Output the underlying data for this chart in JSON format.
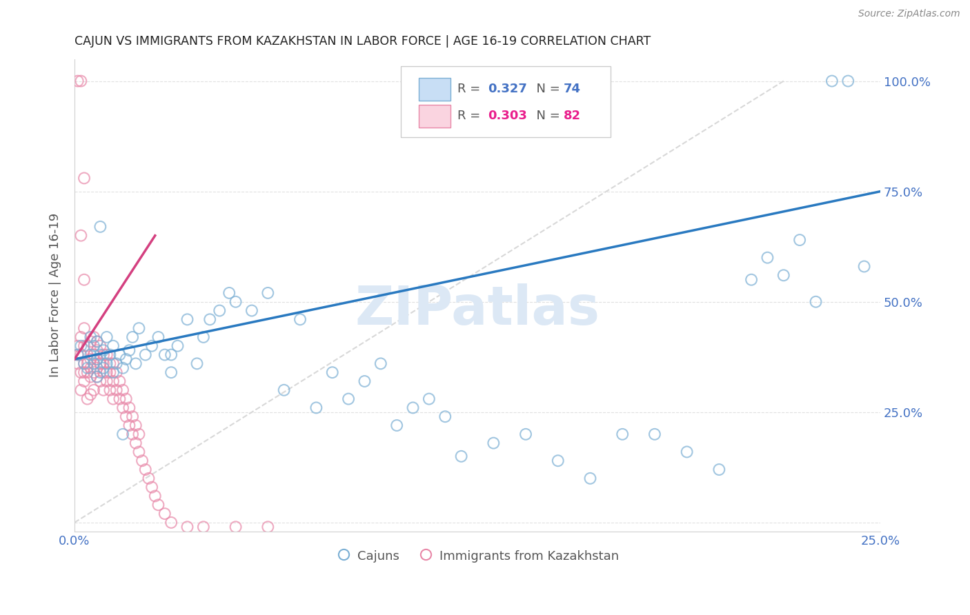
{
  "title": "CAJUN VS IMMIGRANTS FROM KAZAKHSTAN IN LABOR FORCE | AGE 16-19 CORRELATION CHART",
  "source": "Source: ZipAtlas.com",
  "ylabel": "In Labor Force | Age 16-19",
  "x_min": 0.0,
  "x_max": 0.25,
  "y_min": -0.02,
  "y_max": 1.05,
  "cajun_R": 0.327,
  "cajun_N": 74,
  "kazakh_R": 0.303,
  "kazakh_N": 82,
  "blue_color": "#a8c8e8",
  "blue_edge_color": "#7bafd4",
  "pink_color": "#f4b8ca",
  "pink_edge_color": "#e888a8",
  "blue_line_color": "#2979c0",
  "pink_line_color": "#d44080",
  "ref_line_color": "#d8d8d8",
  "tick_label_color": "#4472C4",
  "legend_blue_text_color": "#4472C4",
  "legend_pink_text_color": "#e91e8c",
  "watermark_color": "#dce8f5",
  "background_color": "#ffffff",
  "grid_color": "#e0e0e0",
  "blue_line_x": [
    0.0,
    0.25
  ],
  "blue_line_y": [
    0.37,
    0.75
  ],
  "pink_line_x": [
    0.0,
    0.025
  ],
  "pink_line_y": [
    0.37,
    0.65
  ],
  "ref_line_x": [
    0.0,
    0.22
  ],
  "ref_line_y": [
    0.0,
    1.0
  ],
  "cajun_x": [
    0.001,
    0.002,
    0.003,
    0.004,
    0.005,
    0.005,
    0.006,
    0.006,
    0.007,
    0.007,
    0.007,
    0.008,
    0.008,
    0.009,
    0.009,
    0.01,
    0.01,
    0.011,
    0.012,
    0.012,
    0.013,
    0.014,
    0.015,
    0.016,
    0.017,
    0.018,
    0.019,
    0.02,
    0.022,
    0.024,
    0.026,
    0.028,
    0.03,
    0.032,
    0.035,
    0.038,
    0.04,
    0.042,
    0.045,
    0.048,
    0.05,
    0.055,
    0.06,
    0.065,
    0.07,
    0.075,
    0.08,
    0.085,
    0.09,
    0.095,
    0.1,
    0.105,
    0.11,
    0.115,
    0.12,
    0.13,
    0.14,
    0.15,
    0.16,
    0.17,
    0.18,
    0.19,
    0.2,
    0.21,
    0.215,
    0.22,
    0.225,
    0.23,
    0.235,
    0.24,
    0.245,
    0.008,
    0.015,
    0.03
  ],
  "cajun_y": [
    0.38,
    0.4,
    0.36,
    0.35,
    0.38,
    0.42,
    0.36,
    0.4,
    0.33,
    0.37,
    0.41,
    0.34,
    0.38,
    0.35,
    0.39,
    0.36,
    0.42,
    0.38,
    0.34,
    0.4,
    0.36,
    0.38,
    0.35,
    0.37,
    0.39,
    0.42,
    0.36,
    0.44,
    0.38,
    0.4,
    0.42,
    0.38,
    0.34,
    0.4,
    0.46,
    0.36,
    0.42,
    0.46,
    0.48,
    0.52,
    0.5,
    0.48,
    0.52,
    0.3,
    0.46,
    0.26,
    0.34,
    0.28,
    0.32,
    0.36,
    0.22,
    0.26,
    0.28,
    0.24,
    0.15,
    0.18,
    0.2,
    0.14,
    0.1,
    0.2,
    0.2,
    0.16,
    0.12,
    0.55,
    0.6,
    0.56,
    0.64,
    0.5,
    1.0,
    1.0,
    0.58,
    0.67,
    0.2,
    0.38
  ],
  "kazakh_x": [
    0.001,
    0.001,
    0.001,
    0.001,
    0.002,
    0.002,
    0.002,
    0.002,
    0.002,
    0.003,
    0.003,
    0.003,
    0.003,
    0.003,
    0.003,
    0.004,
    0.004,
    0.004,
    0.004,
    0.005,
    0.005,
    0.005,
    0.005,
    0.005,
    0.006,
    0.006,
    0.006,
    0.006,
    0.006,
    0.006,
    0.007,
    0.007,
    0.007,
    0.007,
    0.007,
    0.008,
    0.008,
    0.008,
    0.008,
    0.009,
    0.009,
    0.009,
    0.009,
    0.01,
    0.01,
    0.01,
    0.011,
    0.011,
    0.011,
    0.012,
    0.012,
    0.012,
    0.013,
    0.013,
    0.014,
    0.014,
    0.015,
    0.015,
    0.016,
    0.016,
    0.017,
    0.017,
    0.018,
    0.018,
    0.019,
    0.019,
    0.02,
    0.02,
    0.021,
    0.022,
    0.023,
    0.024,
    0.025,
    0.026,
    0.028,
    0.03,
    0.035,
    0.04,
    0.05,
    0.06,
    0.002,
    0.003
  ],
  "kazakh_y": [
    0.38,
    0.4,
    0.36,
    1.0,
    0.34,
    0.38,
    0.42,
    1.0,
    0.3,
    0.36,
    0.4,
    0.44,
    0.34,
    0.78,
    0.32,
    0.36,
    0.4,
    0.28,
    0.34,
    0.37,
    0.41,
    0.33,
    0.29,
    0.35,
    0.38,
    0.34,
    0.42,
    0.3,
    0.38,
    0.36,
    0.35,
    0.39,
    0.33,
    0.41,
    0.37,
    0.36,
    0.4,
    0.32,
    0.36,
    0.34,
    0.38,
    0.3,
    0.36,
    0.34,
    0.38,
    0.32,
    0.36,
    0.3,
    0.34,
    0.28,
    0.32,
    0.36,
    0.3,
    0.34,
    0.28,
    0.32,
    0.26,
    0.3,
    0.24,
    0.28,
    0.22,
    0.26,
    0.2,
    0.24,
    0.18,
    0.22,
    0.16,
    0.2,
    0.14,
    0.12,
    0.1,
    0.08,
    0.06,
    0.04,
    0.02,
    0.0,
    -0.01,
    -0.01,
    -0.01,
    -0.01,
    0.65,
    0.55
  ]
}
